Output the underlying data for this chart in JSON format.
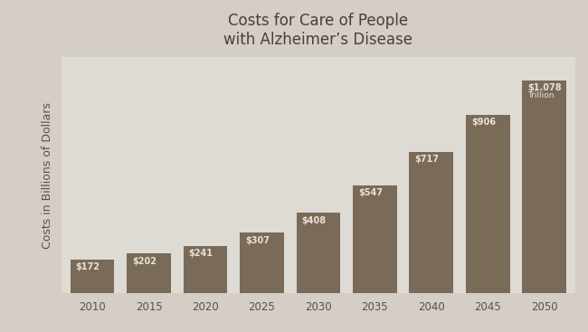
{
  "title_line1": "Costs for Care of People",
  "title_line2": "with Alzheimer’s Disease",
  "ylabel": "Costs in Billions of Dollars",
  "categories": [
    "2010",
    "2015",
    "2020",
    "2025",
    "2030",
    "2035",
    "2040",
    "2045",
    "2050"
  ],
  "values": [
    172,
    202,
    241,
    307,
    408,
    547,
    717,
    906,
    1078
  ],
  "labels": [
    "$172",
    "$202",
    "$241",
    "$307",
    "$408",
    "$547",
    "$717",
    "$906",
    "$1.078"
  ],
  "label_last_line2": "Trillion",
  "bar_color": "#7a6a58",
  "background_color": "#d4cec6",
  "plot_bg_color": "#dedad4",
  "grid_color": "#c0b8b0",
  "label_color": "#e8e2d8",
  "title_color": "#4a4038",
  "ylabel_color": "#5a5248",
  "tick_color": "#5a5248",
  "ylim": [
    0,
    1200
  ],
  "title_fontsize": 12,
  "label_fontsize": 7,
  "ylabel_fontsize": 9,
  "tick_fontsize": 8.5,
  "bar_width": 0.78
}
